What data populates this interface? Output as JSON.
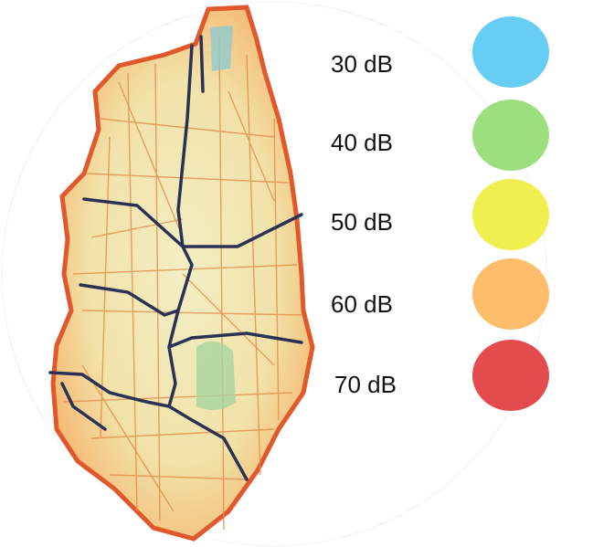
{
  "legend": [
    {
      "label": "30 dB",
      "color": "#67cdf5"
    },
    {
      "label": "40 dB",
      "color": "#9ddf7e"
    },
    {
      "label": "50 dB",
      "color": "#f1ef4f"
    },
    {
      "label": "60 dB",
      "color": "#fdbd6b"
    },
    {
      "label": "70 dB",
      "color": "#e34b4d"
    }
  ]
}
